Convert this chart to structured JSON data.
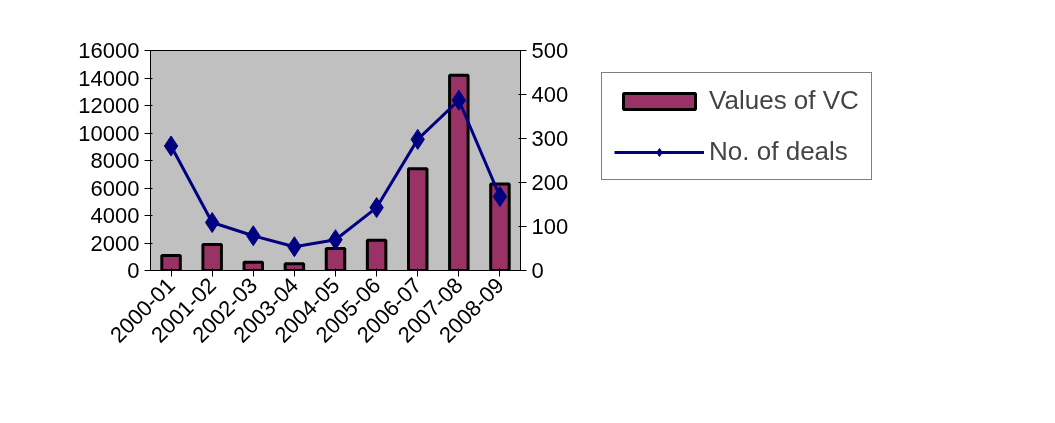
{
  "chart_data": {
    "type": "bar",
    "categories": [
      "2000-01",
      "2001-02",
      "2002-03",
      "2003-04",
      "2004-05",
      "2005-06",
      "2006-07",
      "2007-08",
      "2008-09"
    ],
    "series": [
      {
        "name": "Values of VC",
        "color": "#993366",
        "values": [
          1100,
          1900,
          600,
          500,
          1600,
          2200,
          7400,
          14200,
          6300
        ]
      },
      {
        "name": "No. of deals",
        "type": "line",
        "axis": "y2",
        "color": "#000080",
        "marker": "diamond",
        "values": [
          283,
          109,
          79,
          54,
          70,
          143,
          298,
          387,
          168
        ]
      }
    ],
    "ylim": [
      0,
      16000
    ],
    "yticks": [
      0,
      2000,
      4000,
      6000,
      8000,
      10000,
      12000,
      14000,
      16000
    ],
    "y2lim": [
      0,
      500
    ],
    "y2ticks": [
      0,
      100,
      200,
      300,
      400,
      500
    ],
    "grid": false,
    "legend": "right"
  }
}
